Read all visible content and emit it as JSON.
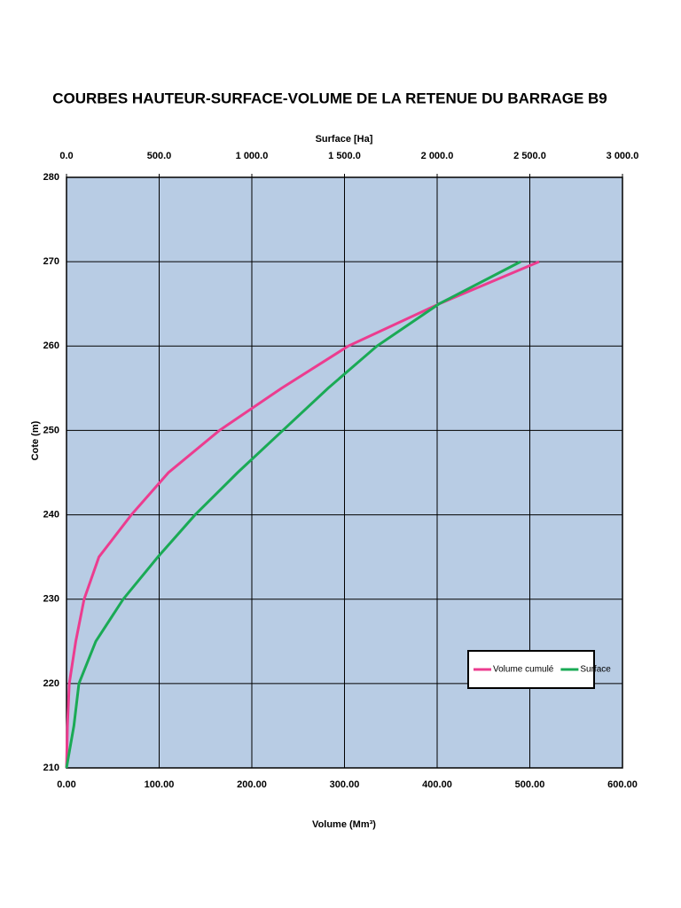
{
  "chart_data": {
    "type": "line",
    "title": "COURBES HAUTEUR-SURFACE-VOLUME DE LA RETENUE DU BARRAGE B9",
    "xlabel": "Volume (Mm³)",
    "x2label": "Surface [Ha]",
    "ylabel": "Cote (m)",
    "xlim": [
      0,
      600
    ],
    "xticks": [
      {
        "value": 0,
        "label": "0.00"
      },
      {
        "value": 100,
        "label": "100.00"
      },
      {
        "value": 200,
        "label": "200.00"
      },
      {
        "value": 300,
        "label": "300.00"
      },
      {
        "value": 400,
        "label": "400.00"
      },
      {
        "value": 500,
        "label": "500.00"
      },
      {
        "value": 600,
        "label": "600.00"
      }
    ],
    "x2lim": [
      0,
      3000
    ],
    "x2ticks": [
      {
        "value": 0,
        "label": "0.0"
      },
      {
        "value": 500,
        "label": "500.0"
      },
      {
        "value": 1000,
        "label": "1 000.0"
      },
      {
        "value": 1500,
        "label": "1 500.0"
      },
      {
        "value": 2000,
        "label": "2 000.0"
      },
      {
        "value": 2500,
        "label": "2 500.0"
      },
      {
        "value": 3000,
        "label": "3 000.0"
      }
    ],
    "ylim": [
      210,
      280
    ],
    "yticks": [
      210,
      220,
      230,
      240,
      250,
      260,
      270,
      280
    ],
    "grid": true,
    "legend": "lower right",
    "series": [
      {
        "name": "Volume cumulé",
        "color": "#ec3c8f",
        "axis": "x",
        "x": [
          0,
          1,
          3,
          10,
          19,
          35,
          70,
          110,
          165,
          232,
          304,
          402,
          510
        ],
        "values": [
          210,
          215,
          220,
          225,
          230,
          235,
          240,
          245,
          250,
          255,
          260,
          265,
          270
        ]
      },
      {
        "name": "Surface",
        "color": "#1aaa55",
        "axis": "x2",
        "x": [
          0,
          40,
          67,
          158,
          306,
          493,
          694,
          923,
          1167,
          1411,
          1675,
          2010,
          2450
        ],
        "values": [
          210,
          215,
          220,
          225,
          230,
          235,
          240,
          245,
          250,
          255,
          260,
          265,
          270
        ]
      }
    ]
  }
}
